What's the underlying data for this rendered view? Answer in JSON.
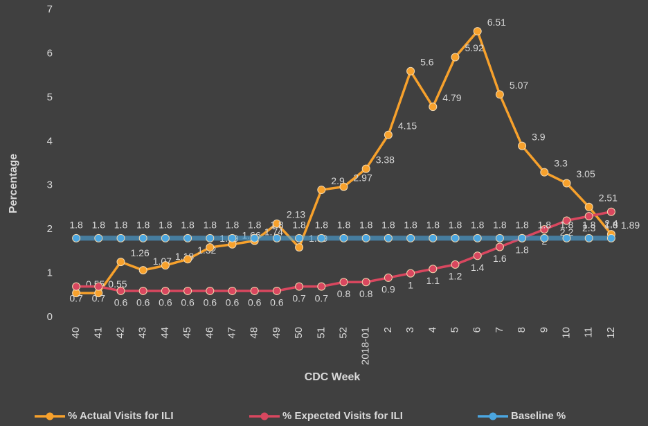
{
  "chart_data": {
    "type": "line",
    "y_label": "Percentage",
    "x_label": "CDC Week",
    "categories": [
      "40",
      "41",
      "42",
      "43",
      "44",
      "45",
      "46",
      "47",
      "48",
      "49",
      "50",
      "51",
      "52",
      "2018-01",
      "2",
      "3",
      "4",
      "5",
      "6",
      "7",
      "8",
      "9",
      "10",
      "11",
      "12"
    ],
    "series": [
      {
        "name": "% Actual Visits for ILI",
        "color": "#f7a12c",
        "values": [
          0.55,
          0.55,
          1.26,
          1.07,
          1.18,
          1.32,
          1.59,
          1.66,
          1.74,
          2.13,
          1.59,
          2.9,
          2.97,
          3.38,
          4.15,
          5.6,
          4.79,
          5.92,
          6.51,
          5.07,
          3.9,
          3.3,
          3.05,
          2.51,
          1.89
        ]
      },
      {
        "name": "% Expected Visits for ILI",
        "color": "#d9475f",
        "values": [
          0.7,
          0.7,
          0.6,
          0.6,
          0.6,
          0.6,
          0.6,
          0.6,
          0.6,
          0.6,
          0.7,
          0.7,
          0.8,
          0.8,
          0.9,
          1,
          1.1,
          1.2,
          1.4,
          1.6,
          1.8,
          2,
          2.2,
          2.3,
          2.4
        ]
      },
      {
        "name": "Baseline %",
        "color": "#4ba6e0",
        "values": [
          1.8,
          1.8,
          1.8,
          1.8,
          1.8,
          1.8,
          1.8,
          1.8,
          1.8,
          1.8,
          1.8,
          1.8,
          1.8,
          1.8,
          1.8,
          1.8,
          1.8,
          1.8,
          1.8,
          1.8,
          1.8,
          1.8,
          1.8,
          1.8,
          1.8
        ]
      }
    ],
    "ylim": [
      0,
      7
    ],
    "yticks": [
      0,
      1,
      2,
      3,
      4,
      5,
      6,
      7
    ],
    "grid": false,
    "legend": "bottom"
  }
}
